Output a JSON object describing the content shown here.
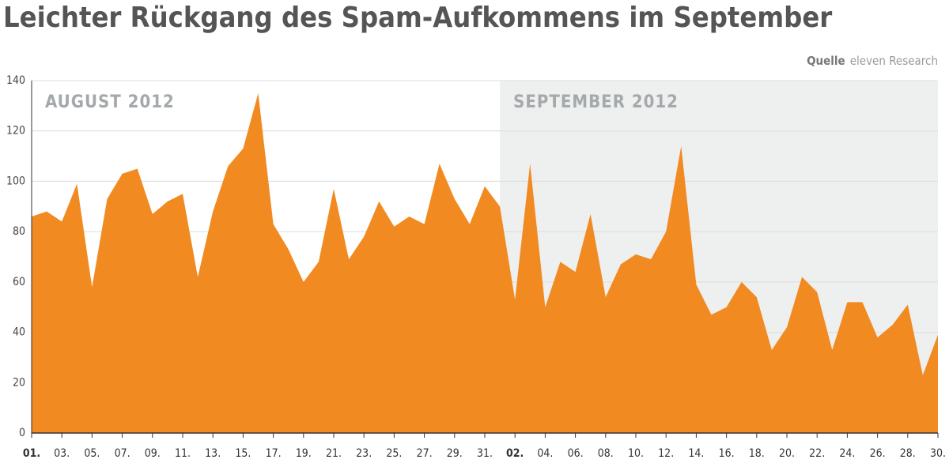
{
  "chart_data": {
    "type": "area",
    "title": "Leichter Rückgang des Spam-Aufkommens im September",
    "source_label": "Quelle",
    "source": "eleven Research",
    "categories": [
      "01.",
      null,
      "03.",
      null,
      "05.",
      null,
      "07.",
      null,
      "09.",
      null,
      "11.",
      null,
      "13.",
      null,
      "15.",
      null,
      "17.",
      null,
      "19.",
      null,
      "21.",
      null,
      "23.",
      null,
      "25.",
      null,
      "27.",
      null,
      "29.",
      null,
      "31.",
      null,
      "02.",
      null,
      "04.",
      null,
      "06.",
      null,
      "08.",
      null,
      "10.",
      null,
      "12.",
      null,
      "14.",
      null,
      "16.",
      null,
      "18.",
      null,
      "20.",
      null,
      "22.",
      null,
      "24.",
      null,
      "26.",
      null,
      "28.",
      null,
      "30."
    ],
    "values": [
      86,
      88,
      84,
      99,
      58,
      93,
      103,
      105,
      87,
      92,
      95,
      62,
      88,
      106,
      113,
      135,
      83,
      73,
      60,
      68,
      97,
      69,
      78,
      92,
      82,
      86,
      83,
      107,
      93,
      83,
      98,
      90,
      53,
      107,
      50,
      68,
      64,
      87,
      54,
      67,
      71,
      69,
      80,
      114,
      59,
      47,
      50,
      60,
      54,
      33,
      42,
      62,
      56,
      33,
      52,
      52,
      38,
      43,
      51,
      23,
      39
    ],
    "color": "#f28a22",
    "bold_category_indices": [
      0,
      32
    ],
    "periods": [
      {
        "text": "AUGUST 2012",
        "start": 0,
        "shaded": false
      },
      {
        "text": "SEPTEMBER 2012",
        "start": 31,
        "shaded": true
      }
    ],
    "ylim": [
      0,
      140
    ],
    "yticks": [
      0,
      20,
      40,
      60,
      80,
      100,
      120,
      140
    ],
    "grid": true
  }
}
